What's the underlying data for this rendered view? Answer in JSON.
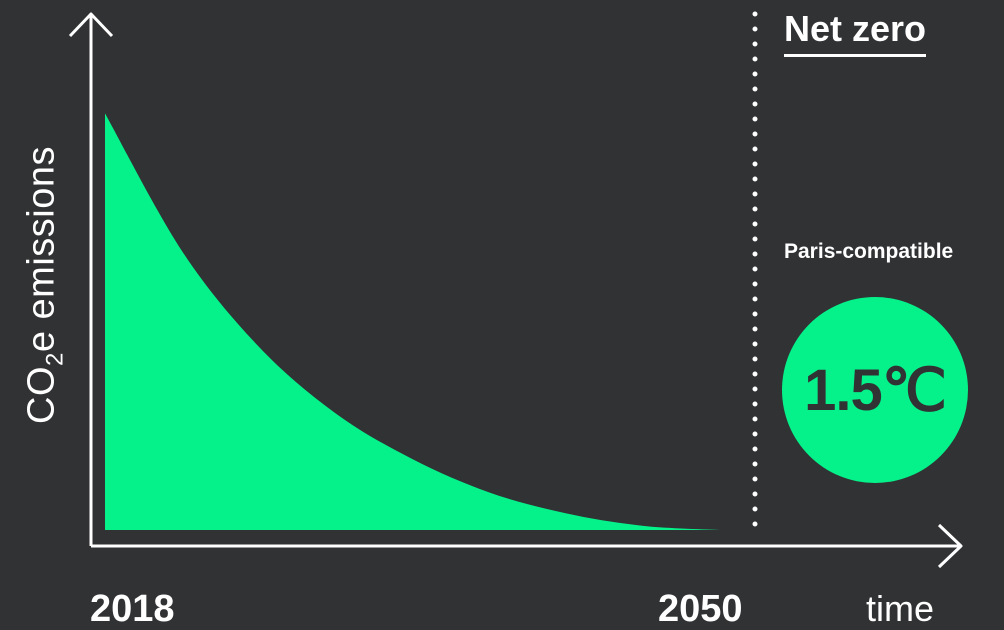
{
  "chart_data": {
    "type": "area",
    "title": "",
    "ylabel_parts": [
      "CO",
      "2",
      "e emissions"
    ],
    "xlabel": "time",
    "x_start_label": "2018",
    "x_end_label": "2050",
    "x": [
      2018,
      2022,
      2026,
      2030,
      2034,
      2038,
      2042,
      2046,
      2050
    ],
    "values": [
      1.0,
      0.67,
      0.44,
      0.28,
      0.17,
      0.09,
      0.04,
      0.01,
      0.0
    ],
    "ylim": [
      0,
      1.2
    ],
    "marker": {
      "label": "Net zero",
      "x": 2051
    },
    "target": {
      "caption": "Paris-compatible",
      "value": "1.5℃"
    },
    "colors": {
      "fill": "#05f28a",
      "axis": "#ffffff",
      "background": "#303234",
      "badge": "#05f28a",
      "badge_text": "#303234"
    }
  }
}
